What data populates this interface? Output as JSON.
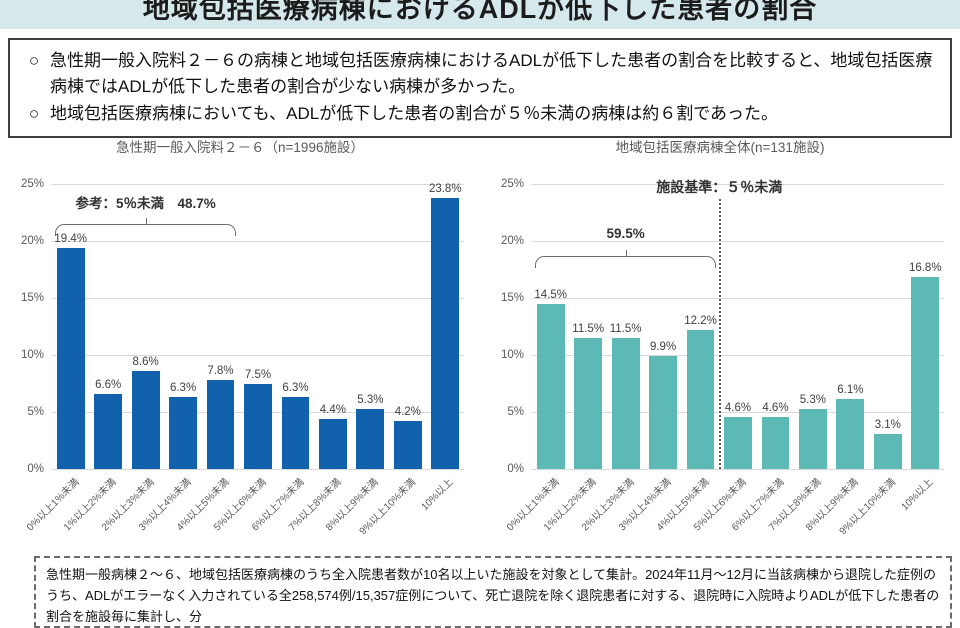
{
  "header": {
    "title": "地域包括医療病棟におけるADLが低下した患者の割合",
    "strip_color": "#d5e9ed"
  },
  "summary": {
    "marker": "○",
    "points": [
      "急性期一般入院料２－６の病棟と地域包括医療病棟におけるADLが低下した患者の割合を比較すると、地域包括医療病棟ではADLが低下した患者の割合が少ない病棟が多かった。",
      "地域包括医療病棟においても、ADLが低下した患者の割合が５％未満の病棟は約６割であった。"
    ]
  },
  "chart_data": [
    {
      "type": "bar",
      "title": "急性期一般入院料２－６（n=1996施設）",
      "categories": [
        "0%以上1%未満",
        "1%以上2%未満",
        "2%以上3%未満",
        "3%以上4%未満",
        "4%以上5%未満",
        "5%以上6%未満",
        "6%以上7%未満",
        "7%以上8%未満",
        "8%以上9%未満",
        "9%以上10%未満",
        "10%以上"
      ],
      "values": [
        19.4,
        6.6,
        8.6,
        6.3,
        7.8,
        7.5,
        6.3,
        4.4,
        5.3,
        4.2,
        23.8
      ],
      "value_labels": [
        "19.4%",
        "6.6%",
        "8.6%",
        "6.3%",
        "7.8%",
        "7.5%",
        "6.3%",
        "4.4%",
        "5.3%",
        "4.2%",
        "23.8%"
      ],
      "bar_color": "#1261ac",
      "ylim": [
        0,
        25
      ],
      "yticks": [
        [
          0,
          "0%"
        ],
        [
          5,
          "5%"
        ],
        [
          10,
          "10%"
        ],
        [
          15,
          "15%"
        ],
        [
          20,
          "20%"
        ],
        [
          25,
          "25%"
        ]
      ],
      "grid": true,
      "bracket": {
        "from": 0,
        "to": 4,
        "label": "参考：5％未満　48.7%"
      }
    },
    {
      "type": "bar",
      "title": "地域包括医療病棟全体(n=131施設)",
      "categories": [
        "0%以上1%未満",
        "1%以上2%未満",
        "2%以上3%未満",
        "3%以上4%未満",
        "4%以上5%未満",
        "5%以上6%未満",
        "6%以上7%未満",
        "7%以上8%未満",
        "8%以上9%未満",
        "9%以上10%未満",
        "10%以上"
      ],
      "values": [
        14.5,
        11.5,
        11.5,
        9.9,
        12.2,
        4.6,
        4.6,
        5.3,
        6.1,
        3.1,
        16.8
      ],
      "value_labels": [
        "14.5%",
        "11.5%",
        "11.5%",
        "9.9%",
        "12.2%",
        "4.6%",
        "4.6%",
        "5.3%",
        "6.1%",
        "3.1%",
        "16.8%"
      ],
      "bar_color": "#5cb9b5",
      "ylim": [
        0,
        25
      ],
      "yticks": [
        [
          0,
          "0%"
        ],
        [
          5,
          "5%"
        ],
        [
          10,
          "10%"
        ],
        [
          15,
          "15%"
        ],
        [
          20,
          "20%"
        ],
        [
          25,
          "25%"
        ]
      ],
      "grid": true,
      "bracket": {
        "from": 0,
        "to": 4,
        "label": "59.5%"
      },
      "threshold": {
        "label": "施設基準：５％未満",
        "between": [
          4,
          5
        ]
      }
    }
  ],
  "footnote": "急性期一般病棟２～６、地域包括医療病棟のうち全入院患者数が10名以上いた施設を対象として集計。2024年11月～12月に当該病棟から退院した症例のうち、ADLがエラーなく入力されている全258,574例/15,357症例について、死亡退院を除く退院患者に対する、退院時に入院時よりADLが低下した患者の割合を施設毎に集計し、分"
}
